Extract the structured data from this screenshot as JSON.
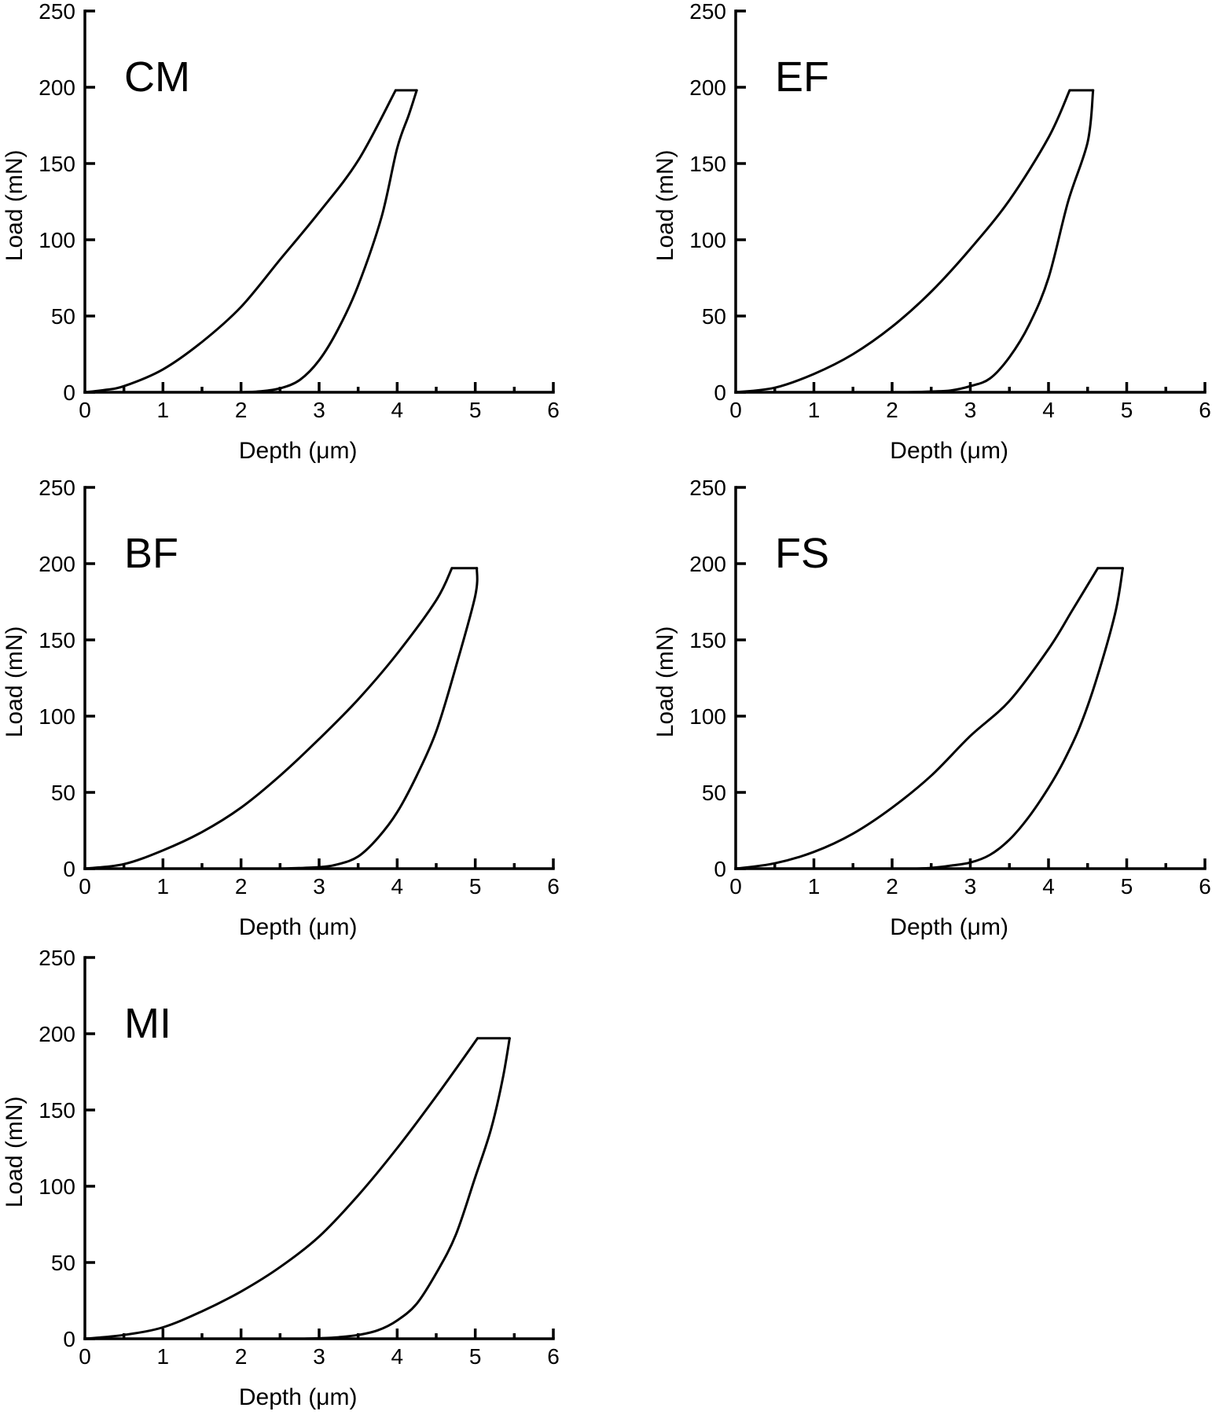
{
  "figure": {
    "description": "Load-depth indentation curves for five samples"
  },
  "chart_data": [
    {
      "type": "line",
      "panel_label": "CM",
      "xlabel": "Depth (μm)",
      "ylabel": "Load (mN)",
      "xlim": [
        0,
        6
      ],
      "ylim": [
        0,
        250
      ],
      "xticks": [
        "0",
        "1",
        "2",
        "3",
        "4",
        "5",
        "6"
      ],
      "yticks": [
        "0",
        "50",
        "100",
        "150",
        "200",
        "250"
      ],
      "x_minor_step": 0.5,
      "grid": false,
      "legend": "none",
      "series": [
        {
          "name": "loading",
          "x": [
            0,
            0.25,
            0.5,
            1.0,
            1.5,
            2.0,
            2.5,
            3.0,
            3.5,
            3.98
          ],
          "y": [
            0,
            1.5,
            4,
            15,
            33,
            56,
            87,
            118,
            152,
            198
          ]
        },
        {
          "name": "hold",
          "x": [
            3.98,
            4.25
          ],
          "y": [
            198,
            198
          ]
        },
        {
          "name": "unloading",
          "x": [
            4.25,
            4.15,
            4.0,
            3.8,
            3.5,
            3.25,
            3.0,
            2.75,
            2.5,
            2.25,
            2.0
          ],
          "y": [
            198,
            182,
            160,
            115,
            70,
            42,
            21,
            8,
            2.6,
            0.6,
            0
          ]
        }
      ]
    },
    {
      "type": "line",
      "panel_label": "EF",
      "xlabel": "Depth (μm)",
      "ylabel": "Load (mN)",
      "xlim": [
        0,
        6
      ],
      "ylim": [
        0,
        250
      ],
      "xticks": [
        "0",
        "1",
        "2",
        "3",
        "4",
        "5",
        "6"
      ],
      "yticks": [
        "0",
        "50",
        "100",
        "150",
        "200",
        "250"
      ],
      "x_minor_step": 0.5,
      "grid": false,
      "legend": "none",
      "series": [
        {
          "name": "loading",
          "x": [
            0,
            0.5,
            1.0,
            1.5,
            2.0,
            2.5,
            3.0,
            3.5,
            4.0,
            4.27
          ],
          "y": [
            0,
            3,
            12,
            25,
            43,
            66,
            94,
            126,
            167,
            198
          ]
        },
        {
          "name": "hold",
          "x": [
            4.27,
            4.57
          ],
          "y": [
            198,
            198
          ]
        },
        {
          "name": "unloading",
          "x": [
            4.57,
            4.5,
            4.25,
            4.0,
            3.75,
            3.5,
            3.25,
            3.0,
            2.75,
            2.5,
            2.2
          ],
          "y": [
            198,
            164,
            125,
            75,
            44,
            23,
            9,
            4,
            1.2,
            0.5,
            0
          ]
        }
      ]
    },
    {
      "type": "line",
      "panel_label": "BF",
      "xlabel": "Depth (μm)",
      "ylabel": "Load (mN)",
      "xlim": [
        0,
        6
      ],
      "ylim": [
        0,
        250
      ],
      "xticks": [
        "0",
        "1",
        "2",
        "3",
        "4",
        "5",
        "6"
      ],
      "yticks": [
        "0",
        "50",
        "100",
        "150",
        "200",
        "250"
      ],
      "x_minor_step": 0.5,
      "grid": false,
      "legend": "none",
      "series": [
        {
          "name": "loading",
          "x": [
            0,
            0.5,
            1.0,
            1.5,
            2.0,
            2.5,
            3.0,
            3.5,
            4.0,
            4.5,
            4.7
          ],
          "y": [
            0,
            3,
            12,
            24,
            40,
            61,
            85,
            111,
            141,
            176,
            197
          ]
        },
        {
          "name": "hold",
          "x": [
            4.7,
            5.02
          ],
          "y": [
            197,
            197
          ]
        },
        {
          "name": "unloading",
          "x": [
            5.02,
            5.0,
            4.75,
            4.5,
            4.25,
            4.0,
            3.75,
            3.5,
            3.25,
            3.0,
            2.5
          ],
          "y": [
            197,
            179,
            132,
            90,
            61,
            37,
            20,
            8,
            3,
            1,
            0
          ]
        }
      ]
    },
    {
      "type": "line",
      "panel_label": "FS",
      "xlabel": "Depth (μm)",
      "ylabel": "Load (mN)",
      "xlim": [
        0,
        6
      ],
      "ylim": [
        0,
        250
      ],
      "xticks": [
        "0",
        "1",
        "2",
        "3",
        "4",
        "5",
        "6"
      ],
      "yticks": [
        "0",
        "50",
        "100",
        "150",
        "200",
        "250"
      ],
      "x_minor_step": 0.5,
      "grid": false,
      "legend": "none",
      "series": [
        {
          "name": "loading",
          "x": [
            0,
            0.5,
            1.0,
            1.5,
            2.0,
            2.5,
            3.0,
            3.5,
            4.0,
            4.3,
            4.63
          ],
          "y": [
            0,
            3.5,
            11,
            23,
            40,
            61,
            87,
            110,
            144,
            169,
            197
          ]
        },
        {
          "name": "hold",
          "x": [
            4.63,
            4.95
          ],
          "y": [
            197,
            197
          ]
        },
        {
          "name": "unloading",
          "x": [
            4.95,
            4.85,
            4.6,
            4.4,
            4.2,
            4.0,
            3.75,
            3.5,
            3.25,
            3.0,
            2.75,
            2.5,
            2.3
          ],
          "y": [
            197,
            167,
            122,
            93,
            71,
            53,
            34,
            19,
            9,
            4,
            2,
            0.5,
            0
          ]
        }
      ]
    },
    {
      "type": "line",
      "panel_label": "MI",
      "xlabel": "Depth (μm)",
      "ylabel": "Load (mN)",
      "xlim": [
        0,
        6
      ],
      "ylim": [
        0,
        250
      ],
      "xticks": [
        "0",
        "1",
        "2",
        "3",
        "4",
        "5",
        "6"
      ],
      "yticks": [
        "0",
        "50",
        "100",
        "150",
        "200",
        "250"
      ],
      "x_minor_step": 0.5,
      "grid": false,
      "legend": "none",
      "series": [
        {
          "name": "loading",
          "x": [
            0,
            0.5,
            1.0,
            1.5,
            2.0,
            2.5,
            3.0,
            3.5,
            4.0,
            4.5,
            5.03
          ],
          "y": [
            0,
            2.5,
            7.5,
            18,
            31,
            47,
            67,
            94,
            125,
            159,
            197
          ]
        },
        {
          "name": "hold",
          "x": [
            5.03,
            5.44
          ],
          "y": [
            197,
            197
          ]
        },
        {
          "name": "unloading",
          "x": [
            5.44,
            5.35,
            5.2,
            5.0,
            4.75,
            4.5,
            4.25,
            4.0,
            3.75,
            3.5,
            3.25,
            3.0,
            2.8
          ],
          "y": [
            197,
            170,
            137,
            106,
            68,
            43,
            23,
            12,
            5.5,
            2.5,
            1,
            0.3,
            0
          ]
        }
      ]
    }
  ]
}
